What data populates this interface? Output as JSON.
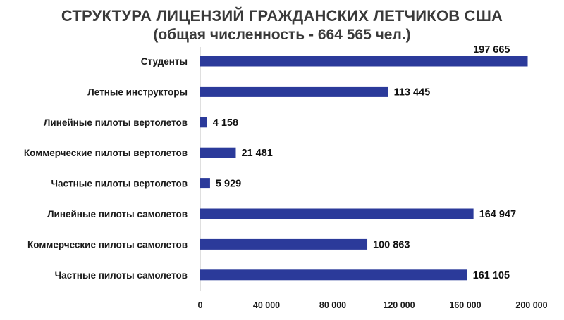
{
  "chart_data": {
    "type": "bar",
    "orientation": "horizontal",
    "title": "СТРУКТУРА ЛИЦЕНЗИЙ ГРАЖДАНСКИХ ЛЕТЧИКОВ США",
    "subtitle": "(общая численность - 664 565 чел.)",
    "categories": [
      "Студенты",
      "Летные инструкторы",
      "Линейные пилоты вертолетов",
      "Коммерческие пилоты вертолетов",
      "Частные пилоты вертолетов",
      "Линейные пилоты самолетов",
      "Коммерческие пилоты самолетов",
      "Частные пилоты самолетов"
    ],
    "values": [
      197665,
      113445,
      4158,
      21481,
      5929,
      164947,
      100863,
      161105
    ],
    "value_labels": [
      "197 665",
      "113 445",
      "4 158",
      "21 481",
      "5 929",
      "164 947",
      "100 863",
      "161 105"
    ],
    "xlim": [
      0,
      200000
    ],
    "x_ticks": [
      0,
      40000,
      80000,
      120000,
      160000,
      200000
    ],
    "x_tick_labels": [
      "0",
      "40 000",
      "80 000",
      "120 000",
      "160 000",
      "200 000"
    ],
    "bar_color": "#2b3a9a",
    "grid": false,
    "legend": "none"
  }
}
